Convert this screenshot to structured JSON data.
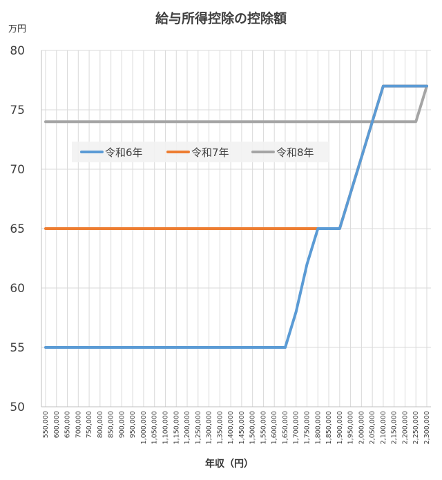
{
  "chart_data": {
    "type": "line",
    "title": "給与所得控除の控除額",
    "ylabel": "万円",
    "xlabel": "年収（円）",
    "ylim": [
      50,
      80
    ],
    "yticks": [
      50,
      55,
      60,
      65,
      70,
      75,
      80
    ],
    "grid": true,
    "legend_position": "inside-upper-left",
    "x": [
      550000,
      600000,
      650000,
      700000,
      750000,
      800000,
      850000,
      900000,
      950000,
      1000000,
      1050000,
      1100000,
      1150000,
      1200000,
      1250000,
      1300000,
      1350000,
      1400000,
      1450000,
      1500000,
      1550000,
      1600000,
      1650000,
      1700000,
      1750000,
      1800000,
      1850000,
      1900000,
      1950000,
      2000000,
      2050000,
      2100000,
      2150000,
      2200000,
      2250000,
      2300000
    ],
    "x_tick_labels": [
      "550,000",
      "600,000",
      "650,000",
      "700,000",
      "750,000",
      "800,000",
      "850,000",
      "900,000",
      "950,000",
      "1,000,000",
      "1,050,000",
      "1,100,000",
      "1,150,000",
      "1,200,000",
      "1,250,000",
      "1,300,000",
      "1,350,000",
      "1,400,000",
      "1,450,000",
      "1,500,000",
      "1,550,000",
      "1,600,000",
      "1,650,000",
      "1,700,000",
      "1,750,000",
      "1,800,000",
      "1,850,000",
      "1,900,000",
      "1,950,000",
      "2,000,000",
      "2,050,000",
      "2,100,000",
      "2,150,000",
      "2,200,000",
      "2,250,000",
      "2,300,000"
    ],
    "series": [
      {
        "name": "令和6年",
        "color": "#5b9bd5",
        "values": [
          55,
          55,
          55,
          55,
          55,
          55,
          55,
          55,
          55,
          55,
          55,
          55,
          55,
          55,
          55,
          55,
          55,
          55,
          55,
          55,
          55,
          55,
          55,
          58,
          62,
          65,
          65,
          65,
          68,
          71,
          74,
          77,
          77,
          77,
          77,
          77
        ]
      },
      {
        "name": "令和7年",
        "color": "#ed7d31",
        "values": [
          65,
          65,
          65,
          65,
          65,
          65,
          65,
          65,
          65,
          65,
          65,
          65,
          65,
          65,
          65,
          65,
          65,
          65,
          65,
          65,
          65,
          65,
          65,
          65,
          65,
          65,
          65,
          65,
          68,
          71,
          74,
          77,
          77,
          77,
          77,
          77
        ]
      },
      {
        "name": "令和8年",
        "color": "#a5a5a5",
        "values": [
          74,
          74,
          74,
          74,
          74,
          74,
          74,
          74,
          74,
          74,
          74,
          74,
          74,
          74,
          74,
          74,
          74,
          74,
          74,
          74,
          74,
          74,
          74,
          74,
          74,
          74,
          74,
          74,
          74,
          74,
          74,
          74,
          74,
          74,
          74,
          77
        ]
      }
    ]
  }
}
